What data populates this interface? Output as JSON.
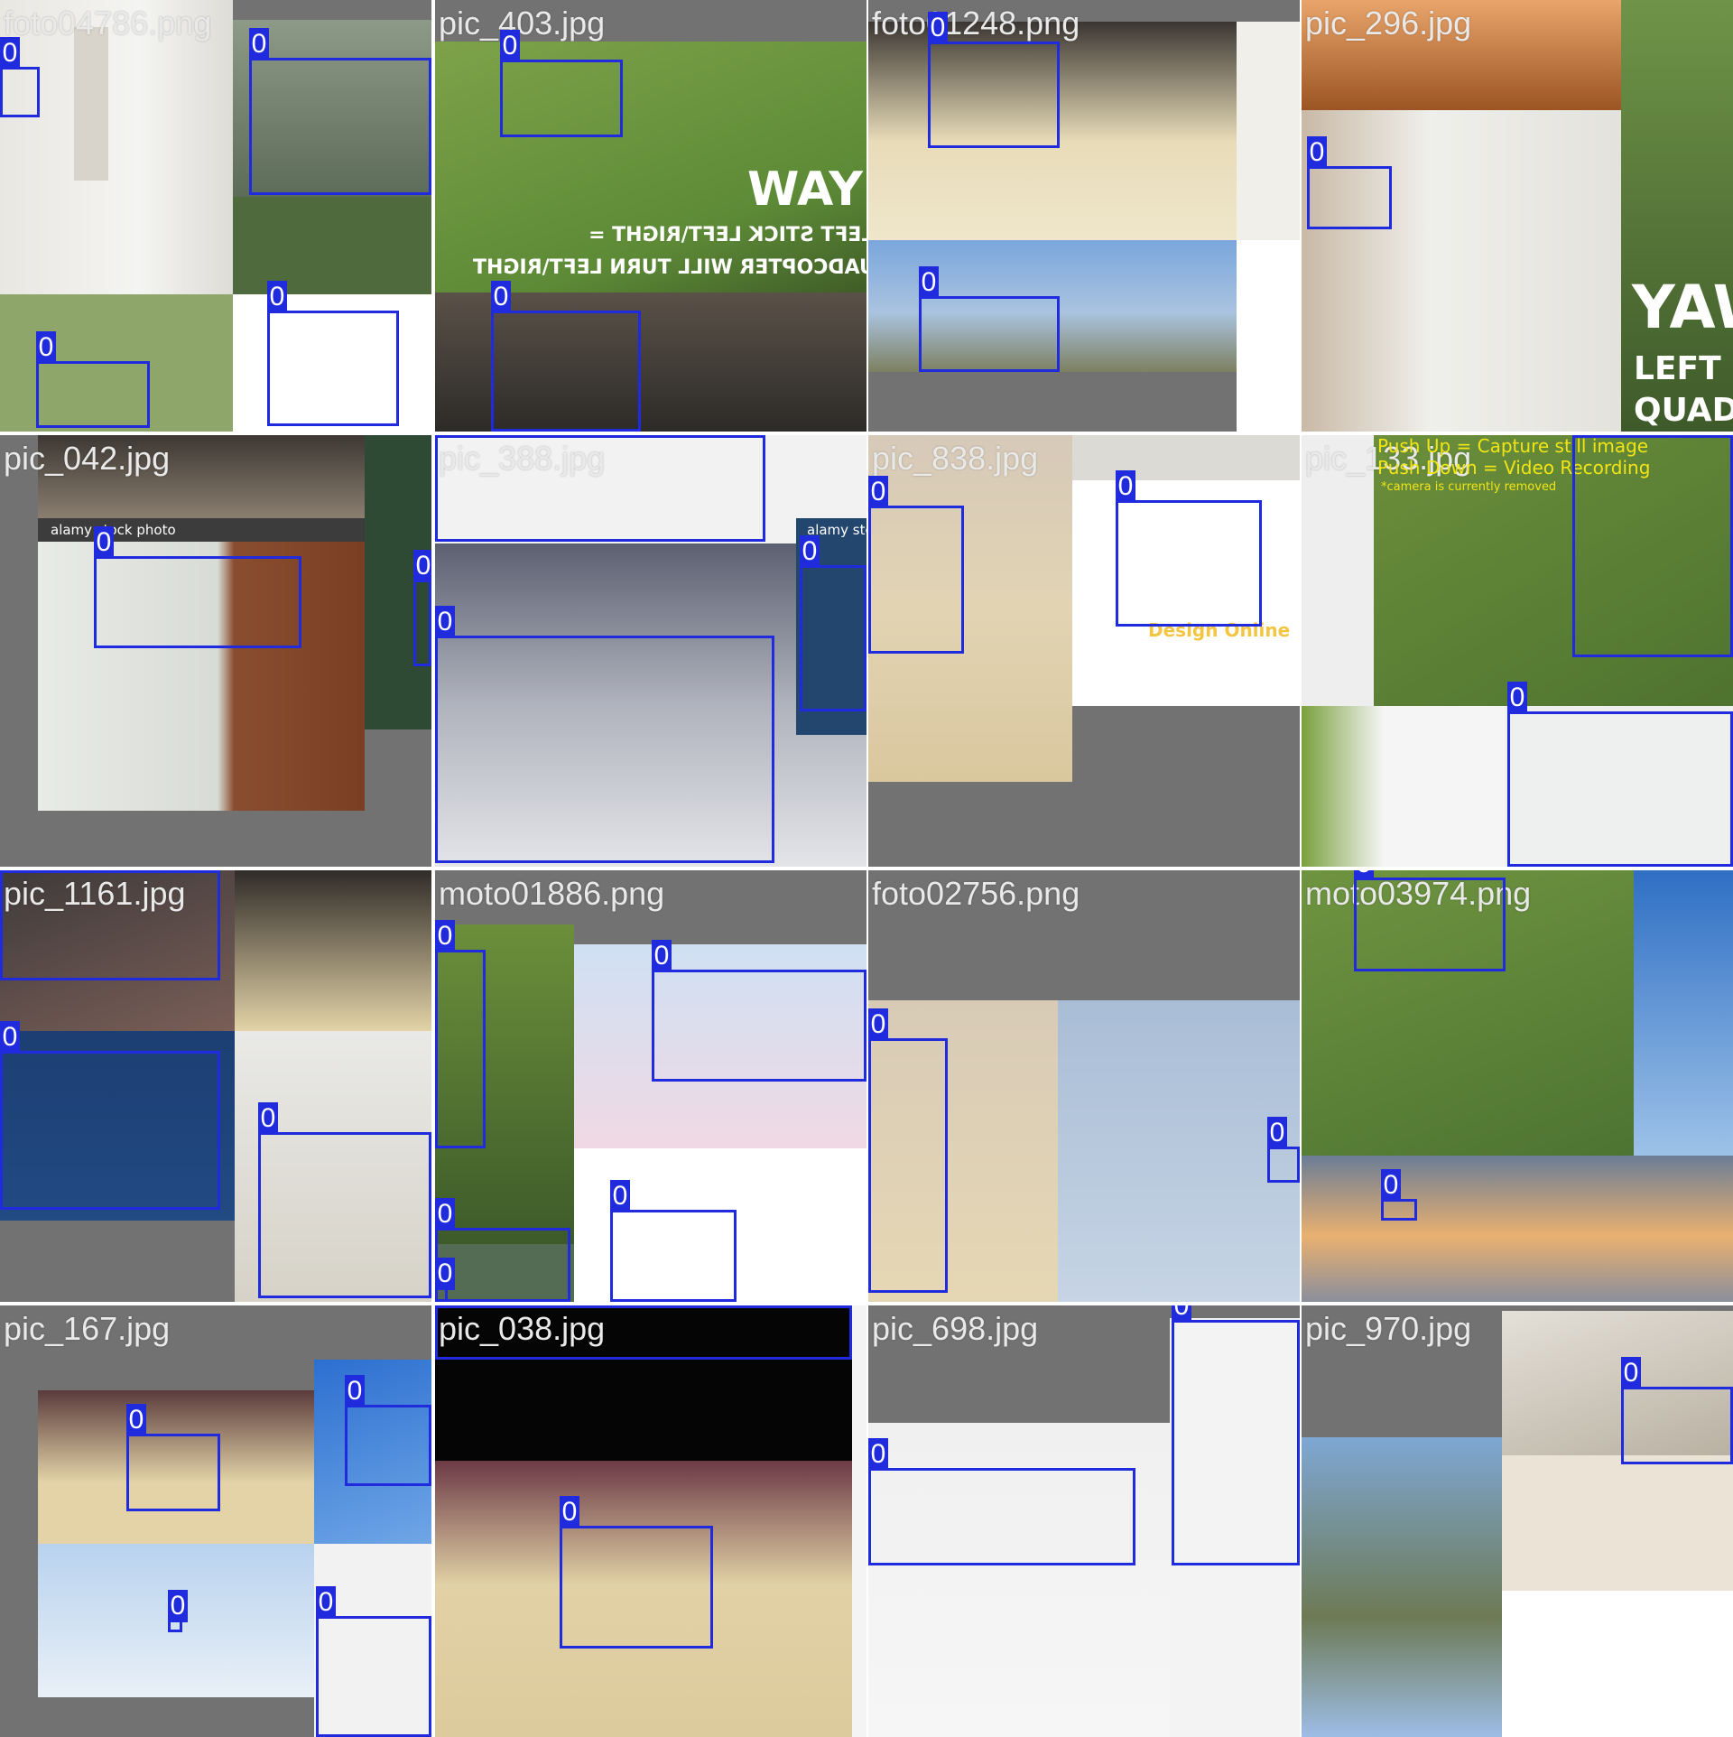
{
  "mosaic": {
    "class_label": "0",
    "box_color": "#1f2bdc",
    "tiles": [
      {
        "filename": "foto04786.png"
      },
      {
        "filename": "pic_403.jpg",
        "overlay_lines": [
          "WAY",
          "LEFT STICK LEFT\\RIGHT =",
          "QUADCOPTER WILL TURN LEFT\\RIGHT"
        ]
      },
      {
        "filename": "foto01248.png"
      },
      {
        "filename": "pic_296.jpg",
        "overlay_lines": [
          "YAW",
          "LEFT ST",
          "QUADCO"
        ]
      },
      {
        "filename": "pic_042.jpg",
        "overlay_lines": [
          "alamy stock photo",
          "alamy sto"
        ]
      },
      {
        "filename": "pic_388.jpg"
      },
      {
        "filename": "pic_838.jpg",
        "overlay_lines": [
          "Design Online"
        ]
      },
      {
        "filename": "pic_133.jpg",
        "overlay_lines": [
          "Push Up = Capture still image",
          "Push Down = Video Recording",
          "*camera is currently removed"
        ]
      },
      {
        "filename": "pic_1161.jpg"
      },
      {
        "filename": "moto01886.png"
      },
      {
        "filename": "foto02756.png"
      },
      {
        "filename": "moto03974.png"
      },
      {
        "filename": "pic_167.jpg"
      },
      {
        "filename": "pic_038.jpg"
      },
      {
        "filename": "pic_698.jpg"
      },
      {
        "filename": "pic_970.jpg"
      }
    ]
  }
}
